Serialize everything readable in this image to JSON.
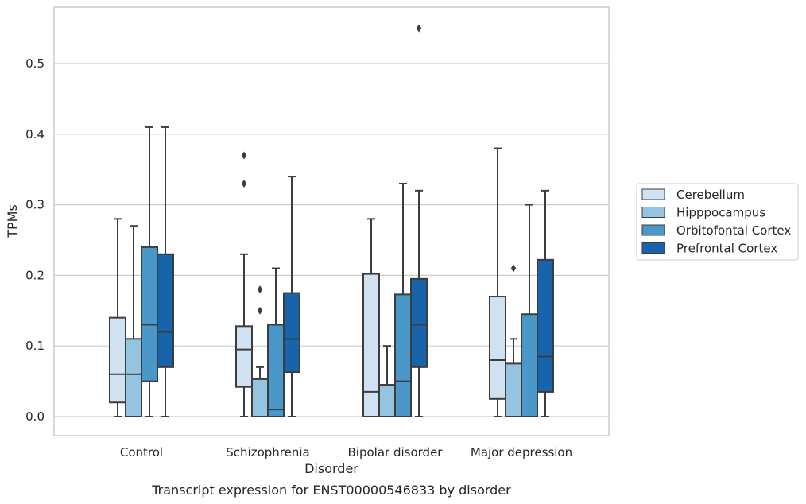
{
  "chart_data": {
    "type": "boxplot",
    "xlabel": "Disorder",
    "ylabel": "TPMs",
    "caption": "Transcript expression for ENST00000546833 by disorder",
    "ylim": [
      -0.027,
      0.582
    ],
    "yticks": [
      0.0,
      0.1,
      0.2,
      0.3,
      0.4,
      0.5
    ],
    "ytick_labels": [
      "0.0",
      "0.1",
      "0.2",
      "0.3",
      "0.4",
      "0.5"
    ],
    "grid": "horizontal",
    "legend_position": "right",
    "categories": [
      "Control",
      "Schizophrenia",
      "Bipolar disorder",
      "Major depression"
    ],
    "series": [
      {
        "name": "Cerebellum",
        "color": "#d0e1f2",
        "boxes": [
          {
            "whislo": 0.0,
            "q1": 0.02,
            "med": 0.06,
            "q3": 0.14,
            "whishi": 0.28,
            "fliers": []
          },
          {
            "whislo": 0.0,
            "q1": 0.042,
            "med": 0.095,
            "q3": 0.128,
            "whishi": 0.23,
            "fliers": [
              0.33,
              0.37
            ]
          },
          {
            "whislo": 0.0,
            "q1": 0.0,
            "med": 0.035,
            "q3": 0.202,
            "whishi": 0.28,
            "fliers": []
          },
          {
            "whislo": 0.0,
            "q1": 0.025,
            "med": 0.08,
            "q3": 0.17,
            "whishi": 0.38,
            "fliers": []
          }
        ]
      },
      {
        "name": "Hipppocampus",
        "color": "#94c4df",
        "boxes": [
          {
            "whislo": 0.0,
            "q1": 0.0,
            "med": 0.06,
            "q3": 0.11,
            "whishi": 0.27,
            "fliers": []
          },
          {
            "whislo": 0.0,
            "q1": 0.0,
            "med": 0.0,
            "q3": 0.053,
            "whishi": 0.07,
            "fliers": [
              0.15,
              0.18
            ]
          },
          {
            "whislo": 0.0,
            "q1": 0.0,
            "med": 0.0,
            "q3": 0.045,
            "whishi": 0.1,
            "fliers": []
          },
          {
            "whislo": 0.0,
            "q1": 0.0,
            "med": 0.0,
            "q3": 0.075,
            "whishi": 0.11,
            "fliers": [
              0.21
            ]
          }
        ]
      },
      {
        "name": "Orbitofontal Cortex",
        "color": "#4a98c9",
        "boxes": [
          {
            "whislo": 0.0,
            "q1": 0.05,
            "med": 0.13,
            "q3": 0.24,
            "whishi": 0.41,
            "fliers": []
          },
          {
            "whislo": 0.0,
            "q1": 0.0,
            "med": 0.01,
            "q3": 0.13,
            "whishi": 0.21,
            "fliers": []
          },
          {
            "whislo": 0.0,
            "q1": 0.0,
            "med": 0.05,
            "q3": 0.173,
            "whishi": 0.33,
            "fliers": []
          },
          {
            "whislo": 0.0,
            "q1": 0.0,
            "med": 0.0,
            "q3": 0.145,
            "whishi": 0.3,
            "fliers": []
          }
        ]
      },
      {
        "name": "Prefrontal Cortex",
        "color": "#1764ab",
        "boxes": [
          {
            "whislo": 0.0,
            "q1": 0.07,
            "med": 0.12,
            "q3": 0.23,
            "whishi": 0.41,
            "fliers": []
          },
          {
            "whislo": 0.0,
            "q1": 0.063,
            "med": 0.11,
            "q3": 0.175,
            "whishi": 0.34,
            "fliers": []
          },
          {
            "whislo": 0.0,
            "q1": 0.07,
            "med": 0.13,
            "q3": 0.195,
            "whishi": 0.32,
            "fliers": [
              0.55
            ]
          },
          {
            "whislo": 0.0,
            "q1": 0.035,
            "med": 0.085,
            "q3": 0.222,
            "whishi": 0.32,
            "fliers": []
          }
        ]
      }
    ]
  }
}
